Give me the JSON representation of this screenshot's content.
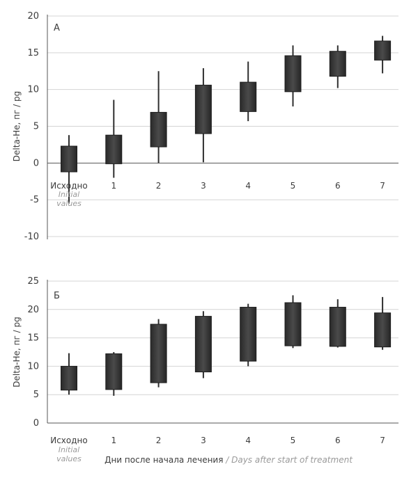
{
  "chart_data": [
    {
      "type": "candlestick",
      "panel_label": "А",
      "ylabel": "Delta-He, пг / pg",
      "ylim": [
        -10,
        20
      ],
      "yticks": [
        -10,
        -5,
        0,
        5,
        10,
        15,
        20
      ],
      "grid": true,
      "categories": [
        {
          "label": "Исходно",
          "sublabel": "Initial values"
        },
        {
          "label": "1"
        },
        {
          "label": "2"
        },
        {
          "label": "3"
        },
        {
          "label": "4"
        },
        {
          "label": "5"
        },
        {
          "label": "6"
        },
        {
          "label": "7"
        }
      ],
      "values": [
        {
          "min": -5.5,
          "q1": -1.2,
          "q3": 2.3,
          "max": 3.8
        },
        {
          "min": -2.0,
          "q1": -0.1,
          "q3": 3.8,
          "max": 8.6
        },
        {
          "min": 0.0,
          "q1": 2.2,
          "q3": 6.9,
          "max": 12.5
        },
        {
          "min": 0.1,
          "q1": 4.0,
          "q3": 10.6,
          "max": 12.9
        },
        {
          "min": 5.7,
          "q1": 7.0,
          "q3": 11.0,
          "max": 13.8
        },
        {
          "min": 7.7,
          "q1": 9.7,
          "q3": 14.6,
          "max": 16.0
        },
        {
          "min": 10.2,
          "q1": 11.8,
          "q3": 15.2,
          "max": 16.0
        },
        {
          "min": 12.2,
          "q1": 14.0,
          "q3": 16.6,
          "max": 17.3
        }
      ]
    },
    {
      "type": "candlestick",
      "panel_label": "Б",
      "ylabel": "Delta-He, пг / pg",
      "xlabel": "Дни после начала лечения",
      "xlabel_en": " / Days after start of treatment",
      "ylim": [
        0,
        25
      ],
      "yticks": [
        0,
        5,
        10,
        15,
        20,
        25
      ],
      "grid": true,
      "categories": [
        {
          "label": "Исходно",
          "sublabel": "Initial values"
        },
        {
          "label": "1"
        },
        {
          "label": "2"
        },
        {
          "label": "3"
        },
        {
          "label": "4"
        },
        {
          "label": "5"
        },
        {
          "label": "6"
        },
        {
          "label": "7"
        }
      ],
      "values": [
        {
          "min": 5.0,
          "q1": 5.8,
          "q3": 10.0,
          "max": 12.3
        },
        {
          "min": 4.8,
          "q1": 5.9,
          "q3": 12.2,
          "max": 12.5
        },
        {
          "min": 6.3,
          "q1": 7.1,
          "q3": 17.4,
          "max": 18.3
        },
        {
          "min": 7.9,
          "q1": 9.0,
          "q3": 18.8,
          "max": 19.7
        },
        {
          "min": 10.0,
          "q1": 10.9,
          "q3": 20.4,
          "max": 21.0
        },
        {
          "min": 13.2,
          "q1": 13.6,
          "q3": 21.2,
          "max": 22.5
        },
        {
          "min": 13.3,
          "q1": 13.5,
          "q3": 20.4,
          "max": 21.8
        },
        {
          "min": 12.9,
          "q1": 13.4,
          "q3": 19.4,
          "max": 22.2
        }
      ]
    }
  ]
}
